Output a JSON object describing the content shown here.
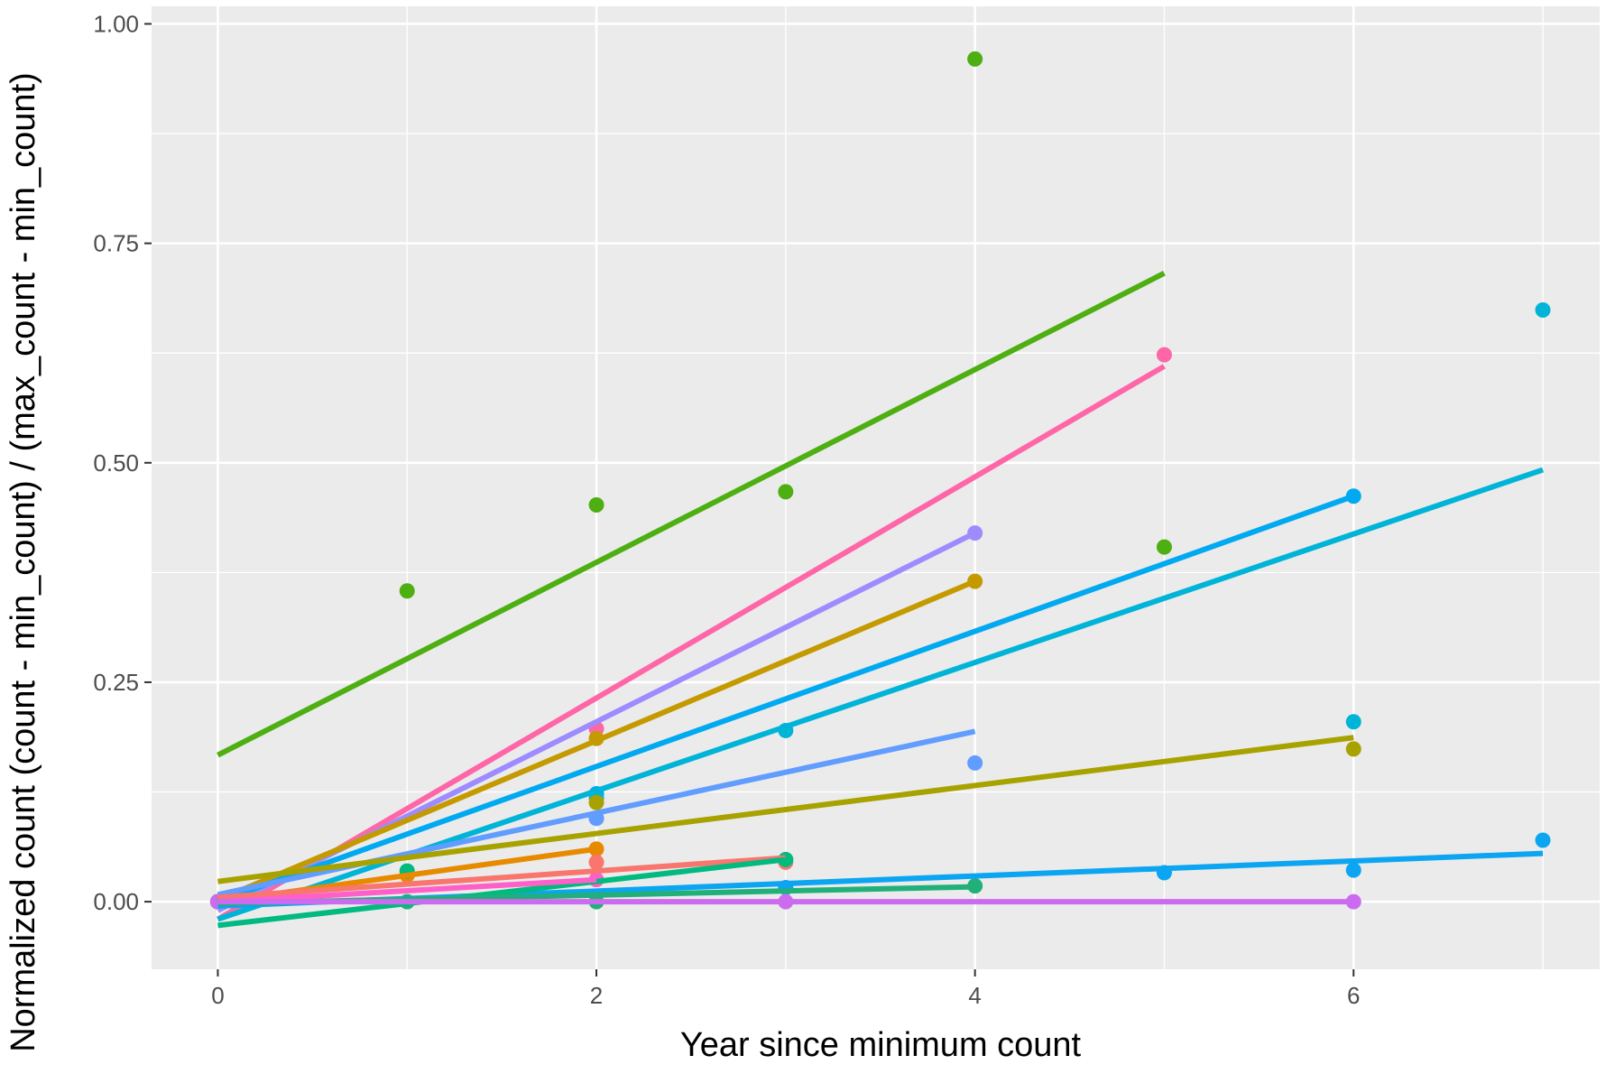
{
  "chart_data": {
    "type": "scatter",
    "title": "",
    "xlabel": "Year since minimum count",
    "ylabel": "Normalized count (count - min_count) / (max_count - min_count)",
    "xlim": [
      -0.35,
      7.3
    ],
    "ylim": [
      -0.077,
      1.02
    ],
    "x_ticks": [
      0,
      2,
      4,
      6
    ],
    "y_ticks": [
      0.0,
      0.25,
      0.5,
      0.75,
      1.0
    ],
    "x_tick_labels": [
      "0",
      "2",
      "4",
      "6"
    ],
    "y_tick_labels": [
      "0.00",
      "0.25",
      "0.50",
      "0.75",
      "1.00"
    ],
    "grid": true,
    "legend": "none",
    "background": "#EBEBEB",
    "series": [
      {
        "color": "#4DAF11",
        "points": [
          [
            0,
            0
          ],
          [
            1,
            0.354
          ],
          [
            2,
            0.452
          ],
          [
            3,
            0.467
          ],
          [
            4,
            0.96
          ],
          [
            5,
            0.404
          ]
        ],
        "fit": [
          [
            0,
            0.167
          ],
          [
            5,
            0.716
          ]
        ]
      },
      {
        "color": "#FF66A8",
        "points": [
          [
            0,
            0
          ],
          [
            2,
            0.197
          ],
          [
            5,
            0.623
          ]
        ],
        "fit": [
          [
            0,
            -0.02
          ],
          [
            5,
            0.61
          ]
        ]
      },
      {
        "color": "#9D8BFF",
        "points": [
          [
            0,
            0
          ],
          [
            2,
            0.095
          ],
          [
            4,
            0.42
          ]
        ],
        "fit": [
          [
            0,
            -0.01
          ],
          [
            4,
            0.42
          ]
        ]
      },
      {
        "color": "#C49A00",
        "points": [
          [
            0,
            0
          ],
          [
            2,
            0.186
          ],
          [
            4,
            0.365
          ]
        ],
        "fit": [
          [
            0,
            0.002
          ],
          [
            4,
            0.365
          ]
        ]
      },
      {
        "color": "#00A9F0",
        "points": [
          [
            0,
            0
          ],
          [
            2,
            0.123
          ],
          [
            6,
            0.462
          ]
        ],
        "fit": [
          [
            0,
            0
          ],
          [
            6,
            0.462
          ]
        ]
      },
      {
        "color": "#00B4D8",
        "points": [
          [
            0,
            0
          ],
          [
            2,
            0.118
          ],
          [
            3,
            0.195
          ],
          [
            6,
            0.205
          ],
          [
            7,
            0.674
          ]
        ],
        "fit": [
          [
            0,
            -0.02
          ],
          [
            7,
            0.492
          ]
        ]
      },
      {
        "color": "#619CFF",
        "points": [
          [
            0,
            0
          ],
          [
            2,
            0.095
          ],
          [
            4,
            0.158
          ]
        ],
        "fit": [
          [
            0,
            0.008
          ],
          [
            4,
            0.194
          ]
        ]
      },
      {
        "color": "#A8A200",
        "points": [
          [
            0,
            0
          ],
          [
            2,
            0.113
          ],
          [
            6,
            0.174
          ]
        ],
        "fit": [
          [
            0,
            0.023
          ],
          [
            6,
            0.187
          ]
        ]
      },
      {
        "color": "#0BA5F2",
        "points": [
          [
            0,
            0
          ],
          [
            3,
            0.016
          ],
          [
            5,
            0.033
          ],
          [
            6,
            0.036
          ],
          [
            7,
            0.07
          ]
        ],
        "fit": [
          [
            0,
            -0.005
          ],
          [
            7,
            0.055
          ]
        ]
      },
      {
        "color": "#E88A00",
        "points": [
          [
            0,
            0
          ],
          [
            1,
            0.03
          ],
          [
            2,
            0.06
          ]
        ],
        "fit": [
          [
            0,
            0
          ],
          [
            2,
            0.06
          ]
        ]
      },
      {
        "color": "#F8766D",
        "points": [
          [
            0,
            0
          ],
          [
            2,
            0.045
          ],
          [
            3,
            0.045
          ]
        ],
        "fit": [
          [
            0,
            0.005
          ],
          [
            3,
            0.05
          ]
        ]
      },
      {
        "color": "#00BA80",
        "points": [
          [
            0,
            0
          ],
          [
            1,
            0.035
          ],
          [
            3,
            0.048
          ]
        ],
        "fit": [
          [
            0,
            -0.027
          ],
          [
            3,
            0.048
          ]
        ]
      },
      {
        "color": "#21B07A",
        "points": [
          [
            0,
            0
          ],
          [
            1,
            0
          ],
          [
            2,
            0
          ],
          [
            4,
            0.018
          ]
        ],
        "fit": [
          [
            0,
            -0.002
          ],
          [
            4,
            0.017
          ]
        ]
      },
      {
        "color": "#FF5FC8",
        "points": [
          [
            0,
            0
          ],
          [
            2,
            0.025
          ]
        ],
        "fit": [
          [
            0,
            0
          ],
          [
            2,
            0.025
          ]
        ]
      },
      {
        "color": "#CB6BF0",
        "points": [
          [
            0,
            0
          ],
          [
            3,
            0
          ],
          [
            6,
            0
          ]
        ],
        "fit": [
          [
            0,
            0
          ],
          [
            6,
            0
          ]
        ]
      }
    ]
  }
}
